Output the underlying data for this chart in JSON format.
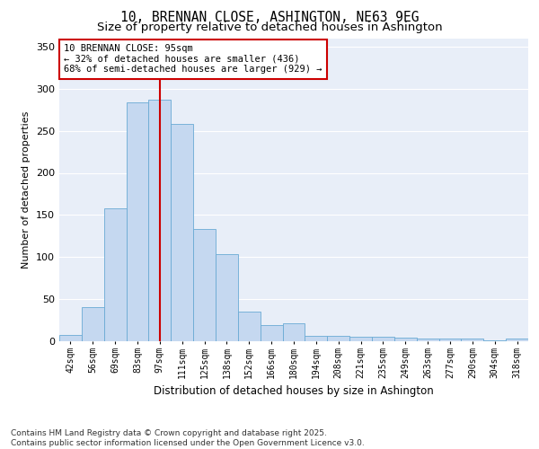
{
  "title": "10, BRENNAN CLOSE, ASHINGTON, NE63 9EG",
  "subtitle": "Size of property relative to detached houses in Ashington",
  "xlabel": "Distribution of detached houses by size in Ashington",
  "ylabel": "Number of detached properties",
  "bin_labels": [
    "42sqm",
    "56sqm",
    "69sqm",
    "83sqm",
    "97sqm",
    "111sqm",
    "125sqm",
    "138sqm",
    "152sqm",
    "166sqm",
    "180sqm",
    "194sqm",
    "208sqm",
    "221sqm",
    "235sqm",
    "249sqm",
    "263sqm",
    "277sqm",
    "290sqm",
    "304sqm",
    "318sqm"
  ],
  "bar_values": [
    7,
    41,
    158,
    284,
    287,
    258,
    133,
    103,
    35,
    19,
    21,
    6,
    6,
    5,
    5,
    4,
    3,
    3,
    3,
    1,
    3
  ],
  "bar_color": "#c5d8f0",
  "bar_edgecolor": "#6aaad4",
  "vline_x_index": 4,
  "vline_color": "#cc0000",
  "annotation_text": "10 BRENNAN CLOSE: 95sqm\n← 32% of detached houses are smaller (436)\n68% of semi-detached houses are larger (929) →",
  "annotation_box_facecolor": "#ffffff",
  "annotation_box_edgecolor": "#cc0000",
  "ylim": [
    0,
    360
  ],
  "yticks": [
    0,
    50,
    100,
    150,
    200,
    250,
    300,
    350
  ],
  "plot_bg_color": "#e8eef8",
  "grid_color": "#ffffff",
  "footer": "Contains HM Land Registry data © Crown copyright and database right 2025.\nContains public sector information licensed under the Open Government Licence v3.0.",
  "title_fontsize": 10.5,
  "subtitle_fontsize": 9.5,
  "xlabel_fontsize": 8.5,
  "ylabel_fontsize": 8,
  "tick_fontsize": 7,
  "annotation_fontsize": 7.5,
  "footer_fontsize": 6.5
}
